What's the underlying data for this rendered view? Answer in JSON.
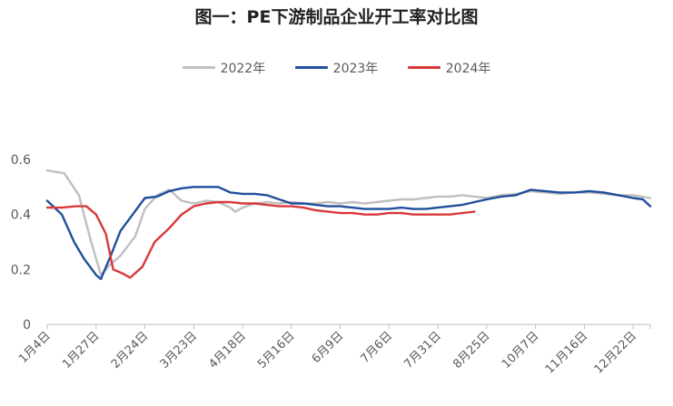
{
  "chart_data": {
    "type": "line",
    "title": "图一：PE下游制品企业开工率对比图",
    "xlabel": "",
    "ylabel": "",
    "ylim": [
      0,
      0.6
    ],
    "yticks": [
      "0",
      "0.2",
      "0.4",
      "0.6"
    ],
    "x_ticks": [
      "1月4日",
      "1月27日",
      "2月24日",
      "3月23日",
      "4月18日",
      "5月16日",
      "6月9日",
      "7月6日",
      "7月31日",
      "8月25日",
      "10月7日",
      "11月16日",
      "12月22日"
    ],
    "grid": false,
    "legend_position": "top-center",
    "series": [
      {
        "name": "2022年",
        "color": "#bfbfbf",
        "points": [
          [
            0,
            0.56
          ],
          [
            0.35,
            0.55
          ],
          [
            0.65,
            0.47
          ],
          [
            0.9,
            0.3
          ],
          [
            1.1,
            0.18
          ],
          [
            1.3,
            0.22
          ],
          [
            1.5,
            0.25
          ],
          [
            1.8,
            0.32
          ],
          [
            2.0,
            0.42
          ],
          [
            2.25,
            0.47
          ],
          [
            2.5,
            0.49
          ],
          [
            2.75,
            0.45
          ],
          [
            3.0,
            0.44
          ],
          [
            3.25,
            0.45
          ],
          [
            3.5,
            0.445
          ],
          [
            3.75,
            0.425
          ],
          [
            3.85,
            0.41
          ],
          [
            4.0,
            0.425
          ],
          [
            4.25,
            0.44
          ],
          [
            4.5,
            0.445
          ],
          [
            4.75,
            0.44
          ],
          [
            5.0,
            0.445
          ],
          [
            5.25,
            0.44
          ],
          [
            5.5,
            0.44
          ],
          [
            5.75,
            0.445
          ],
          [
            6.0,
            0.44
          ],
          [
            6.25,
            0.445
          ],
          [
            6.5,
            0.44
          ],
          [
            6.75,
            0.445
          ],
          [
            7.0,
            0.45
          ],
          [
            7.25,
            0.455
          ],
          [
            7.5,
            0.455
          ],
          [
            7.75,
            0.46
          ],
          [
            8.0,
            0.465
          ],
          [
            8.25,
            0.465
          ],
          [
            8.5,
            0.47
          ],
          [
            8.75,
            0.465
          ],
          [
            9.0,
            0.46
          ],
          [
            9.3,
            0.47
          ],
          [
            9.6,
            0.475
          ],
          [
            9.9,
            0.485
          ],
          [
            10.2,
            0.48
          ],
          [
            10.5,
            0.475
          ],
          [
            10.8,
            0.48
          ],
          [
            11.1,
            0.48
          ],
          [
            11.4,
            0.475
          ],
          [
            11.7,
            0.47
          ],
          [
            12.0,
            0.47
          ],
          [
            12.35,
            0.46
          ]
        ]
      },
      {
        "name": "2023年",
        "color": "#1f4e9c",
        "points": [
          [
            0,
            0.45
          ],
          [
            0.3,
            0.4
          ],
          [
            0.55,
            0.3
          ],
          [
            0.75,
            0.24
          ],
          [
            1.0,
            0.18
          ],
          [
            1.1,
            0.165
          ],
          [
            1.3,
            0.25
          ],
          [
            1.5,
            0.34
          ],
          [
            1.75,
            0.4
          ],
          [
            2.0,
            0.46
          ],
          [
            2.25,
            0.465
          ],
          [
            2.5,
            0.485
          ],
          [
            2.75,
            0.495
          ],
          [
            3.0,
            0.5
          ],
          [
            3.25,
            0.5
          ],
          [
            3.5,
            0.5
          ],
          [
            3.75,
            0.48
          ],
          [
            4.0,
            0.475
          ],
          [
            4.25,
            0.475
          ],
          [
            4.5,
            0.47
          ],
          [
            4.75,
            0.455
          ],
          [
            5.0,
            0.44
          ],
          [
            5.25,
            0.44
          ],
          [
            5.5,
            0.435
          ],
          [
            5.75,
            0.43
          ],
          [
            6.0,
            0.43
          ],
          [
            6.25,
            0.425
          ],
          [
            6.5,
            0.42
          ],
          [
            6.75,
            0.42
          ],
          [
            7.0,
            0.42
          ],
          [
            7.25,
            0.425
          ],
          [
            7.5,
            0.42
          ],
          [
            7.75,
            0.42
          ],
          [
            8.0,
            0.425
          ],
          [
            8.25,
            0.43
          ],
          [
            8.5,
            0.435
          ],
          [
            8.75,
            0.445
          ],
          [
            9.0,
            0.455
          ],
          [
            9.3,
            0.465
          ],
          [
            9.6,
            0.47
          ],
          [
            9.9,
            0.49
          ],
          [
            10.2,
            0.485
          ],
          [
            10.5,
            0.48
          ],
          [
            10.8,
            0.48
          ],
          [
            11.1,
            0.485
          ],
          [
            11.4,
            0.48
          ],
          [
            11.7,
            0.47
          ],
          [
            12.0,
            0.46
          ],
          [
            12.2,
            0.455
          ],
          [
            12.35,
            0.43
          ]
        ]
      },
      {
        "name": "2024年",
        "color": "#d9383a",
        "points": [
          [
            0,
            0.425
          ],
          [
            0.3,
            0.425
          ],
          [
            0.6,
            0.43
          ],
          [
            0.8,
            0.43
          ],
          [
            1.0,
            0.4
          ],
          [
            1.2,
            0.33
          ],
          [
            1.35,
            0.2
          ],
          [
            1.55,
            0.185
          ],
          [
            1.7,
            0.17
          ],
          [
            1.95,
            0.21
          ],
          [
            2.2,
            0.3
          ],
          [
            2.5,
            0.35
          ],
          [
            2.75,
            0.4
          ],
          [
            3.0,
            0.43
          ],
          [
            3.25,
            0.44
          ],
          [
            3.5,
            0.445
          ],
          [
            3.75,
            0.445
          ],
          [
            4.0,
            0.44
          ],
          [
            4.25,
            0.44
          ],
          [
            4.5,
            0.435
          ],
          [
            4.75,
            0.43
          ],
          [
            5.0,
            0.43
          ],
          [
            5.25,
            0.425
          ],
          [
            5.5,
            0.415
          ],
          [
            5.75,
            0.41
          ],
          [
            6.0,
            0.405
          ],
          [
            6.25,
            0.405
          ],
          [
            6.5,
            0.4
          ],
          [
            6.75,
            0.4
          ],
          [
            7.0,
            0.405
          ],
          [
            7.25,
            0.405
          ],
          [
            7.5,
            0.4
          ],
          [
            7.75,
            0.4
          ],
          [
            8.0,
            0.4
          ],
          [
            8.25,
            0.4
          ],
          [
            8.5,
            0.405
          ],
          [
            8.75,
            0.41
          ]
        ]
      }
    ]
  }
}
